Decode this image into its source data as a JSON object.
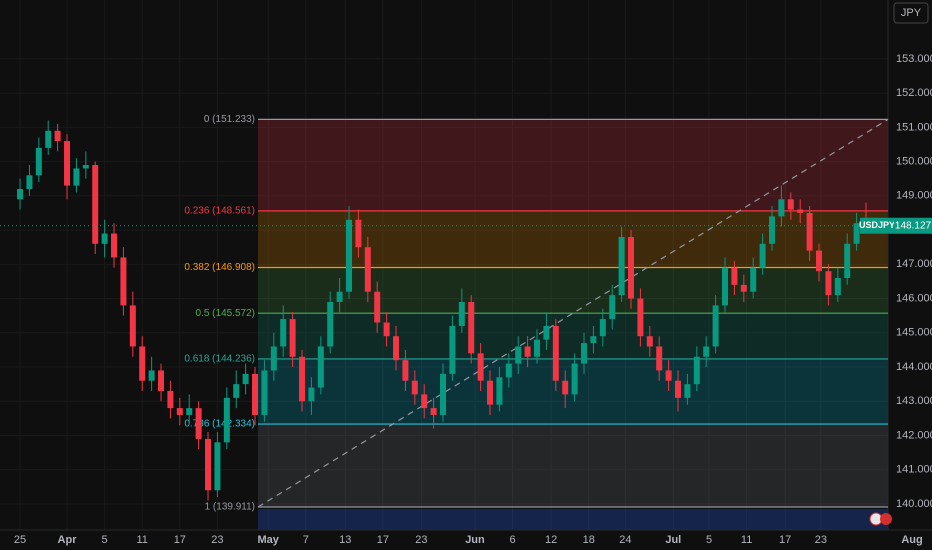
{
  "chart_data": {
    "type": "candlestick",
    "symbol": "USDJPY",
    "currency": "JPY",
    "current_price": 148.127,
    "up_color": "#089981",
    "down_color": "#f23645",
    "ylim": [
      139.24,
      154.72
    ],
    "yticks": [
      {
        "value": 140,
        "label": "140.000"
      },
      {
        "value": 141,
        "label": "141.000"
      },
      {
        "value": 142,
        "label": "142.000"
      },
      {
        "value": 143,
        "label": "143.000"
      },
      {
        "value": 144,
        "label": "144.000"
      },
      {
        "value": 145,
        "label": "145.000"
      },
      {
        "value": 146,
        "label": "146.000"
      },
      {
        "value": 147,
        "label": "147.000"
      },
      {
        "value": 148,
        "label": "148.000"
      },
      {
        "value": 149,
        "label": "149.000"
      },
      {
        "value": 150,
        "label": "150.000"
      },
      {
        "value": 151,
        "label": "151.000"
      },
      {
        "value": 152,
        "label": "152.000"
      },
      {
        "value": 153,
        "label": "153.000"
      }
    ],
    "xlim": [
      -2.13,
      92.34
    ],
    "xticks": [
      {
        "value": 0,
        "label": "25"
      },
      {
        "value": 5,
        "label": "Apr"
      },
      {
        "value": 9,
        "label": "5"
      },
      {
        "value": 13,
        "label": "11"
      },
      {
        "value": 17,
        "label": "17"
      },
      {
        "value": 21,
        "label": "23"
      },
      {
        "value": 26.4,
        "label": "May"
      },
      {
        "value": 30.4,
        "label": "7"
      },
      {
        "value": 34.6,
        "label": "13"
      },
      {
        "value": 38.6,
        "label": "17"
      },
      {
        "value": 42.7,
        "label": "23"
      },
      {
        "value": 48.4,
        "label": "Jun"
      },
      {
        "value": 52.4,
        "label": "6"
      },
      {
        "value": 56.5,
        "label": "12"
      },
      {
        "value": 60.5,
        "label": "18"
      },
      {
        "value": 64.4,
        "label": "24"
      },
      {
        "value": 69.5,
        "label": "Jul"
      },
      {
        "value": 73.3,
        "label": "5"
      },
      {
        "value": 77.3,
        "label": "11"
      },
      {
        "value": 81.4,
        "label": "17"
      },
      {
        "value": 85.2,
        "label": "23"
      },
      {
        "value": 94.9,
        "label": "Aug"
      }
    ],
    "ohlc": [
      [
        148.9,
        149.5,
        148.6,
        149.2
      ],
      [
        149.2,
        149.9,
        149.0,
        149.6
      ],
      [
        149.6,
        150.7,
        149.4,
        150.4
      ],
      [
        150.4,
        151.2,
        150.2,
        150.9
      ],
      [
        150.9,
        151.1,
        150.3,
        150.6
      ],
      [
        150.6,
        150.8,
        148.9,
        149.3
      ],
      [
        149.3,
        150.1,
        149.1,
        149.8
      ],
      [
        149.8,
        150.3,
        149.5,
        149.9
      ],
      [
        149.9,
        150.0,
        147.3,
        147.6
      ],
      [
        147.6,
        148.3,
        147.2,
        147.9
      ],
      [
        147.9,
        148.2,
        146.9,
        147.2
      ],
      [
        147.2,
        147.5,
        145.5,
        145.8
      ],
      [
        145.8,
        146.2,
        144.3,
        144.6
      ],
      [
        144.6,
        144.9,
        143.3,
        143.6
      ],
      [
        143.6,
        144.3,
        143.3,
        143.9
      ],
      [
        143.9,
        144.1,
        143.0,
        143.3
      ],
      [
        143.3,
        143.6,
        142.5,
        142.8
      ],
      [
        142.8,
        143.1,
        142.3,
        142.6
      ],
      [
        142.6,
        143.2,
        142.4,
        142.8
      ],
      [
        142.8,
        143.0,
        141.6,
        141.9
      ],
      [
        141.9,
        142.1,
        140.1,
        140.4
      ],
      [
        140.4,
        142.1,
        140.2,
        141.8
      ],
      [
        141.8,
        143.4,
        141.6,
        143.1
      ],
      [
        143.1,
        143.9,
        142.8,
        143.5
      ],
      [
        143.5,
        144.1,
        143.2,
        143.8
      ],
      [
        143.8,
        144.0,
        142.3,
        142.6
      ],
      [
        142.6,
        144.2,
        142.4,
        143.9
      ],
      [
        143.9,
        145.0,
        143.6,
        144.6
      ],
      [
        144.6,
        145.8,
        144.3,
        145.4
      ],
      [
        145.4,
        145.6,
        144.0,
        144.3
      ],
      [
        144.3,
        144.5,
        142.7,
        143.0
      ],
      [
        143.0,
        143.7,
        142.6,
        143.4
      ],
      [
        143.4,
        144.9,
        143.2,
        144.6
      ],
      [
        144.6,
        146.2,
        144.4,
        145.9
      ],
      [
        145.9,
        146.6,
        145.6,
        146.2
      ],
      [
        146.2,
        148.7,
        146.0,
        148.3
      ],
      [
        148.3,
        148.6,
        147.2,
        147.5
      ],
      [
        147.5,
        147.8,
        145.9,
        146.2
      ],
      [
        146.2,
        146.5,
        145.0,
        145.3
      ],
      [
        145.3,
        145.6,
        144.6,
        144.9
      ],
      [
        144.9,
        145.2,
        143.9,
        144.2
      ],
      [
        144.2,
        144.5,
        143.3,
        143.6
      ],
      [
        143.6,
        143.9,
        142.9,
        143.2
      ],
      [
        143.2,
        143.5,
        142.5,
        142.8
      ],
      [
        142.8,
        143.1,
        142.2,
        142.6
      ],
      [
        142.6,
        144.1,
        142.4,
        143.8
      ],
      [
        143.8,
        145.5,
        143.6,
        145.2
      ],
      [
        145.2,
        146.3,
        145.0,
        145.9
      ],
      [
        145.9,
        146.1,
        144.1,
        144.4
      ],
      [
        144.4,
        144.7,
        143.3,
        143.6
      ],
      [
        143.6,
        143.9,
        142.6,
        142.9
      ],
      [
        142.9,
        144.0,
        142.7,
        143.7
      ],
      [
        143.7,
        144.4,
        143.4,
        144.1
      ],
      [
        144.1,
        144.9,
        143.8,
        144.6
      ],
      [
        144.6,
        144.9,
        144.0,
        144.3
      ],
      [
        144.3,
        145.1,
        144.1,
        144.8
      ],
      [
        144.8,
        145.6,
        144.5,
        145.2
      ],
      [
        145.2,
        145.4,
        143.3,
        143.6
      ],
      [
        143.6,
        143.9,
        142.8,
        143.2
      ],
      [
        143.2,
        144.4,
        143.0,
        144.1
      ],
      [
        144.1,
        145.0,
        143.8,
        144.7
      ],
      [
        144.7,
        145.2,
        144.4,
        144.9
      ],
      [
        144.9,
        145.7,
        144.6,
        145.4
      ],
      [
        145.4,
        146.4,
        145.1,
        146.1
      ],
      [
        146.1,
        148.1,
        145.9,
        147.8
      ],
      [
        147.8,
        148.0,
        145.7,
        146.0
      ],
      [
        146.0,
        146.3,
        144.6,
        144.9
      ],
      [
        144.9,
        145.2,
        144.3,
        144.6
      ],
      [
        144.6,
        144.9,
        143.6,
        143.9
      ],
      [
        143.9,
        144.2,
        143.3,
        143.6
      ],
      [
        143.6,
        143.9,
        142.7,
        143.1
      ],
      [
        143.1,
        143.8,
        142.9,
        143.5
      ],
      [
        143.5,
        144.6,
        143.3,
        144.3
      ],
      [
        144.3,
        144.9,
        144.0,
        144.6
      ],
      [
        144.6,
        146.1,
        144.4,
        145.8
      ],
      [
        145.8,
        147.2,
        145.6,
        146.9
      ],
      [
        146.9,
        147.1,
        146.1,
        146.4
      ],
      [
        146.4,
        146.7,
        145.9,
        146.2
      ],
      [
        146.2,
        147.2,
        146.0,
        146.9
      ],
      [
        146.9,
        147.9,
        146.7,
        147.6
      ],
      [
        147.6,
        148.7,
        147.4,
        148.4
      ],
      [
        148.4,
        149.3,
        148.1,
        148.9
      ],
      [
        148.9,
        149.1,
        148.3,
        148.6
      ],
      [
        148.6,
        148.9,
        148.2,
        148.5
      ],
      [
        148.5,
        148.7,
        147.1,
        147.4
      ],
      [
        147.4,
        147.6,
        146.5,
        146.8
      ],
      [
        146.8,
        147.0,
        145.8,
        146.1
      ],
      [
        146.1,
        146.9,
        145.9,
        146.6
      ],
      [
        146.6,
        147.9,
        146.4,
        147.6
      ],
      [
        147.6,
        148.5,
        147.4,
        148.2
      ],
      [
        148.2,
        148.8,
        147.9,
        148.1
      ]
    ],
    "fib_levels": [
      {
        "label": "0 (151.233)",
        "price": 151.233,
        "color": "#9598a1",
        "fill": "rgba(242,54,69,0.22)"
      },
      {
        "label": "0.236 (148.561)",
        "price": 148.561,
        "color": "#f23645",
        "fill": "rgba(255,152,0,0.2)"
      },
      {
        "label": "0.382 (146.908)",
        "price": 146.908,
        "color": "#ff9800",
        "fill": "rgba(76,175,80,0.18)"
      },
      {
        "label": "0.5 (145.572)",
        "price": 145.572,
        "color": "#4caf50",
        "fill": "rgba(8,153,129,0.2)"
      },
      {
        "label": "0.618 (144.236)",
        "price": 144.236,
        "color": "#26a69a",
        "fill": "rgba(0,188,212,0.22)"
      },
      {
        "label": "0.786 (142.334)",
        "price": 142.334,
        "color": "#22c3d6",
        "fill": "rgba(120,123,134,0.22)"
      },
      {
        "label": "1 (139.911)",
        "price": 139.911,
        "color": "#9598a1",
        "fill": null
      }
    ]
  }
}
